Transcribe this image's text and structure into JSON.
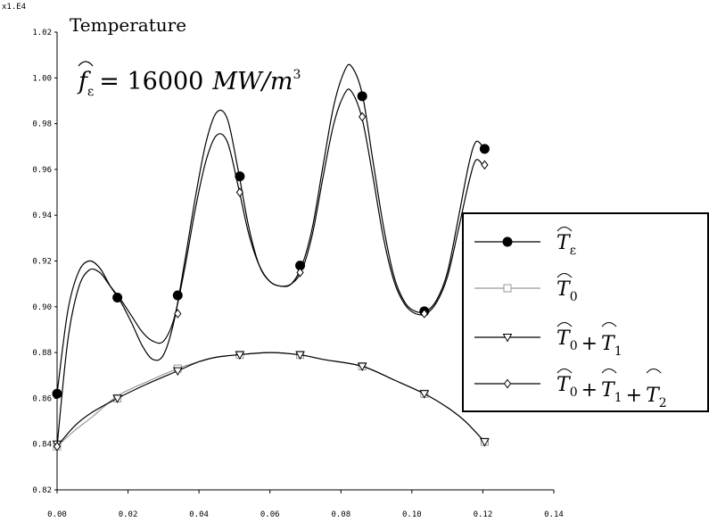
{
  "chart_data": {
    "type": "line",
    "title": "Temperature",
    "scale_label": "x1.E4",
    "annotation": {
      "symbol": "f",
      "subscript": "ε",
      "equals_value": "= 16000",
      "unit": "MW/m",
      "unit_exponent": "3"
    },
    "xlim": [
      0,
      0.14
    ],
    "ylim": [
      0.82,
      1.02
    ],
    "xticks": [
      "0.00",
      "0.02",
      "0.04",
      "0.06",
      "0.08",
      "0.10",
      "0.12",
      "0.14"
    ],
    "yticks": [
      "0.82",
      "0.84",
      "0.86",
      "0.88",
      "0.90",
      "0.92",
      "0.94",
      "0.96",
      "0.98",
      "1.00",
      "1.02"
    ],
    "legend_position": "right",
    "grid": false,
    "series": [
      {
        "name": "T_ε",
        "legend_parts": [
          {
            "text": "T",
            "sub": "ε"
          }
        ],
        "marker": "filled-circle",
        "color": "#000000",
        "curve": [
          [
            0,
            0.862
          ],
          [
            0.003,
            0.898
          ],
          [
            0.006,
            0.915
          ],
          [
            0.009,
            0.92
          ],
          [
            0.012,
            0.917
          ],
          [
            0.015,
            0.909
          ],
          [
            0.018,
            0.902
          ],
          [
            0.021,
            0.893
          ],
          [
            0.024,
            0.883
          ],
          [
            0.027,
            0.877
          ],
          [
            0.03,
            0.879
          ],
          [
            0.033,
            0.894
          ],
          [
            0.036,
            0.92
          ],
          [
            0.039,
            0.948
          ],
          [
            0.042,
            0.972
          ],
          [
            0.045,
            0.985
          ],
          [
            0.048,
            0.982
          ],
          [
            0.051,
            0.96
          ],
          [
            0.054,
            0.935
          ],
          [
            0.057,
            0.918
          ],
          [
            0.06,
            0.911
          ],
          [
            0.063,
            0.909
          ],
          [
            0.066,
            0.91
          ],
          [
            0.069,
            0.918
          ],
          [
            0.072,
            0.935
          ],
          [
            0.075,
            0.962
          ],
          [
            0.078,
            0.988
          ],
          [
            0.081,
            1.003
          ],
          [
            0.083,
            1.005
          ],
          [
            0.086,
            0.993
          ],
          [
            0.089,
            0.964
          ],
          [
            0.092,
            0.935
          ],
          [
            0.095,
            0.913
          ],
          [
            0.098,
            0.902
          ],
          [
            0.101,
            0.898
          ],
          [
            0.104,
            0.898
          ],
          [
            0.107,
            0.903
          ],
          [
            0.11,
            0.915
          ],
          [
            0.113,
            0.938
          ],
          [
            0.116,
            0.962
          ],
          [
            0.118,
            0.972
          ],
          [
            0.12,
            0.97
          ]
        ],
        "markers": [
          [
            0,
            0.862
          ],
          [
            0.017,
            0.904
          ],
          [
            0.034,
            0.905
          ],
          [
            0.0515,
            0.957
          ],
          [
            0.0685,
            0.918
          ],
          [
            0.086,
            0.992
          ],
          [
            0.1035,
            0.898
          ],
          [
            0.1205,
            0.969
          ]
        ]
      },
      {
        "name": "T_0",
        "legend_parts": [
          {
            "text": "T",
            "sub": "0"
          }
        ],
        "marker": "open-square",
        "color": "#999999",
        "curve": [
          [
            0,
            0.839
          ],
          [
            0.005,
            0.846
          ],
          [
            0.01,
            0.852
          ],
          [
            0.017,
            0.861
          ],
          [
            0.025,
            0.867
          ],
          [
            0.034,
            0.873
          ],
          [
            0.04,
            0.876
          ],
          [
            0.045,
            0.878
          ],
          [
            0.051,
            0.879
          ],
          [
            0.06,
            0.88
          ],
          [
            0.0685,
            0.879
          ],
          [
            0.075,
            0.877
          ],
          [
            0.086,
            0.874
          ],
          [
            0.095,
            0.868
          ],
          [
            0.1035,
            0.862
          ],
          [
            0.11,
            0.856
          ],
          [
            0.115,
            0.85
          ],
          [
            0.1205,
            0.841
          ]
        ],
        "markers": [
          [
            0,
            0.839
          ],
          [
            0.017,
            0.86
          ],
          [
            0.034,
            0.873
          ],
          [
            0.0515,
            0.879
          ],
          [
            0.0685,
            0.879
          ],
          [
            0.086,
            0.874
          ],
          [
            0.1035,
            0.862
          ],
          [
            0.1205,
            0.841
          ]
        ]
      },
      {
        "name": "T_0 + T_1",
        "legend_parts": [
          {
            "text": "T",
            "sub": "0"
          },
          {
            "text": "T",
            "sub": "1"
          }
        ],
        "marker": "open-triangle-down",
        "color": "#000000",
        "curve": [
          [
            0,
            0.839
          ],
          [
            0.005,
            0.848
          ],
          [
            0.01,
            0.854
          ],
          [
            0.017,
            0.86
          ],
          [
            0.025,
            0.866
          ],
          [
            0.034,
            0.872
          ],
          [
            0.04,
            0.876
          ],
          [
            0.045,
            0.878
          ],
          [
            0.051,
            0.879
          ],
          [
            0.06,
            0.88
          ],
          [
            0.0685,
            0.879
          ],
          [
            0.075,
            0.877
          ],
          [
            0.086,
            0.874
          ],
          [
            0.095,
            0.868
          ],
          [
            0.1035,
            0.862
          ],
          [
            0.11,
            0.856
          ],
          [
            0.115,
            0.85
          ],
          [
            0.1205,
            0.841
          ]
        ],
        "markers": [
          [
            0,
            0.84
          ],
          [
            0.017,
            0.86
          ],
          [
            0.034,
            0.872
          ],
          [
            0.0515,
            0.879
          ],
          [
            0.0685,
            0.879
          ],
          [
            0.086,
            0.874
          ],
          [
            0.1035,
            0.862
          ],
          [
            0.1205,
            0.841
          ]
        ]
      },
      {
        "name": "T_0 + T_1 + T_2",
        "legend_parts": [
          {
            "text": "T",
            "sub": "0"
          },
          {
            "text": "T",
            "sub": "1"
          },
          {
            "text": "T",
            "sub": "2"
          }
        ],
        "marker": "open-diamond",
        "color": "#000000",
        "curve": [
          [
            0,
            0.839
          ],
          [
            0.003,
            0.885
          ],
          [
            0.006,
            0.908
          ],
          [
            0.009,
            0.916
          ],
          [
            0.012,
            0.915
          ],
          [
            0.015,
            0.909
          ],
          [
            0.018,
            0.903
          ],
          [
            0.021,
            0.896
          ],
          [
            0.024,
            0.889
          ],
          [
            0.027,
            0.885
          ],
          [
            0.03,
            0.885
          ],
          [
            0.033,
            0.895
          ],
          [
            0.036,
            0.917
          ],
          [
            0.039,
            0.943
          ],
          [
            0.042,
            0.964
          ],
          [
            0.045,
            0.975
          ],
          [
            0.048,
            0.972
          ],
          [
            0.051,
            0.953
          ],
          [
            0.054,
            0.932
          ],
          [
            0.057,
            0.918
          ],
          [
            0.06,
            0.911
          ],
          [
            0.063,
            0.909
          ],
          [
            0.066,
            0.91
          ],
          [
            0.069,
            0.916
          ],
          [
            0.072,
            0.932
          ],
          [
            0.075,
            0.957
          ],
          [
            0.078,
            0.98
          ],
          [
            0.081,
            0.993
          ],
          [
            0.083,
            0.994
          ],
          [
            0.086,
            0.982
          ],
          [
            0.089,
            0.957
          ],
          [
            0.092,
            0.93
          ],
          [
            0.095,
            0.911
          ],
          [
            0.098,
            0.901
          ],
          [
            0.101,
            0.897
          ],
          [
            0.104,
            0.897
          ],
          [
            0.107,
            0.902
          ],
          [
            0.11,
            0.913
          ],
          [
            0.113,
            0.933
          ],
          [
            0.116,
            0.954
          ],
          [
            0.118,
            0.964
          ],
          [
            0.12,
            0.962
          ]
        ],
        "markers": [
          [
            0,
            0.839
          ],
          [
            0.034,
            0.897
          ],
          [
            0.0515,
            0.95
          ],
          [
            0.0685,
            0.915
          ],
          [
            0.086,
            0.983
          ],
          [
            0.1035,
            0.897
          ],
          [
            0.1205,
            0.962
          ]
        ]
      }
    ]
  }
}
